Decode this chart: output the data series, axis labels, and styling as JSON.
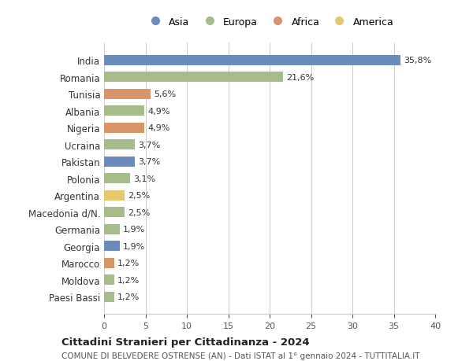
{
  "countries": [
    "India",
    "Romania",
    "Tunisia",
    "Albania",
    "Nigeria",
    "Ucraina",
    "Pakistan",
    "Polonia",
    "Argentina",
    "Macedonia d/N.",
    "Germania",
    "Georgia",
    "Marocco",
    "Moldova",
    "Paesi Bassi"
  ],
  "values": [
    35.8,
    21.6,
    5.6,
    4.9,
    4.9,
    3.7,
    3.7,
    3.1,
    2.5,
    2.5,
    1.9,
    1.9,
    1.2,
    1.2,
    1.2
  ],
  "labels": [
    "35,8%",
    "21,6%",
    "5,6%",
    "4,9%",
    "4,9%",
    "3,7%",
    "3,7%",
    "3,1%",
    "2,5%",
    "2,5%",
    "1,9%",
    "1,9%",
    "1,2%",
    "1,2%",
    "1,2%"
  ],
  "continents": [
    "Asia",
    "Europa",
    "Africa",
    "Europa",
    "Africa",
    "Europa",
    "Asia",
    "Europa",
    "America",
    "Europa",
    "Europa",
    "Asia",
    "Africa",
    "Europa",
    "Europa"
  ],
  "continent_colors": {
    "Asia": "#6b8cba",
    "Europa": "#a8bb8a",
    "Africa": "#d9956a",
    "America": "#e8c96a"
  },
  "legend_order": [
    "Asia",
    "Europa",
    "Africa",
    "America"
  ],
  "title": "Cittadini Stranieri per Cittadinanza - 2024",
  "subtitle": "COMUNE DI BELVEDERE OSTRENSE (AN) - Dati ISTAT al 1° gennaio 2024 - TUTTITALIA.IT",
  "xlim": [
    0,
    40
  ],
  "xticks": [
    0,
    5,
    10,
    15,
    20,
    25,
    30,
    35,
    40
  ],
  "background_color": "#ffffff",
  "grid_color": "#cccccc"
}
